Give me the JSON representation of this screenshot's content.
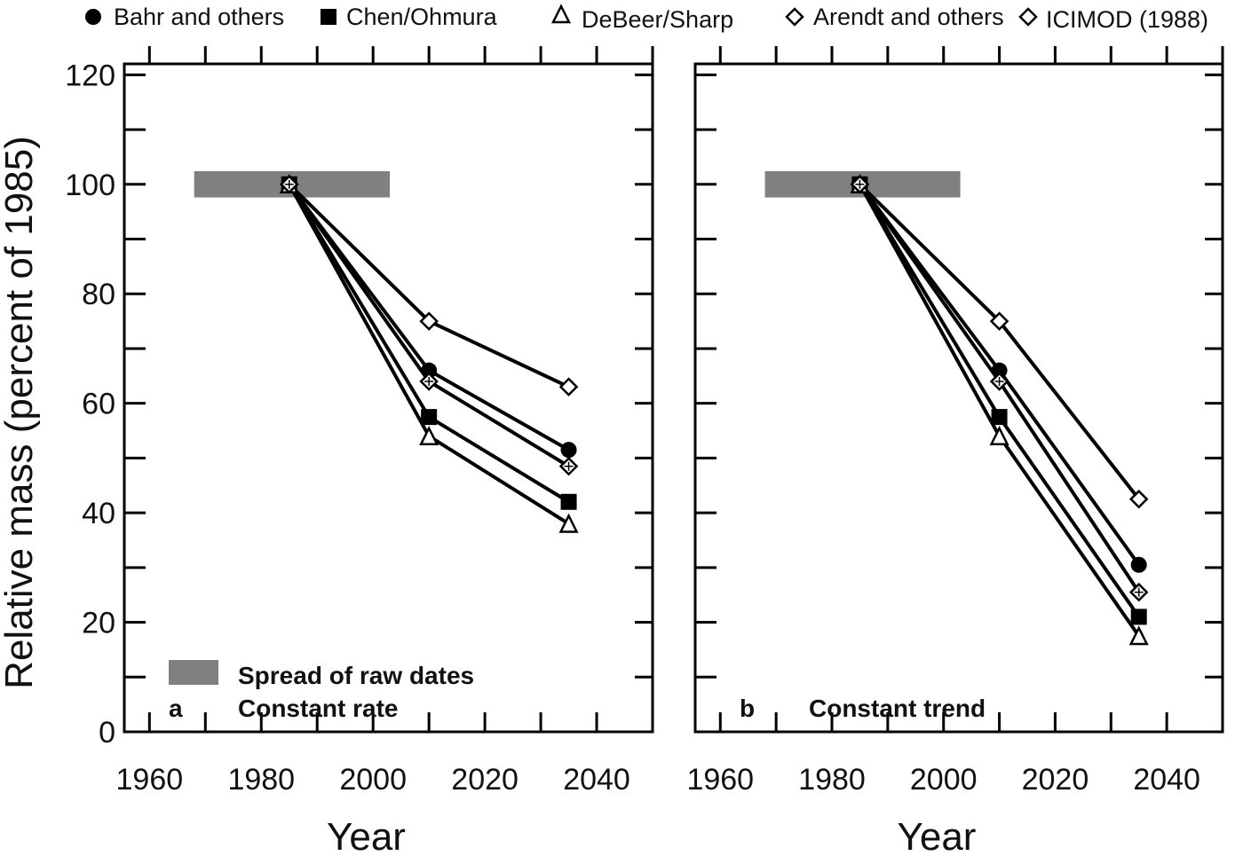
{
  "chart_data": [
    {
      "type": "line",
      "panel_label": "a",
      "title": "Constant rate",
      "xlabel": "Year",
      "ylabel": "Relative mass (percent of 1985)",
      "xlim": [
        1955.5,
        2050
      ],
      "ylim": [
        0,
        122
      ],
      "xticks": [
        1960,
        1980,
        2000,
        2020,
        2040
      ],
      "yticks": [
        0,
        20,
        40,
        60,
        80,
        100,
        120
      ],
      "spread": {
        "label": "Spread of raw dates",
        "x": [
          1968,
          2003
        ],
        "y": [
          97.6,
          102.4
        ],
        "color": "#808080"
      },
      "series": [
        {
          "name": "Bahr and others",
          "marker": "circle-filled",
          "x": [
            1985,
            2010,
            2035
          ],
          "y": [
            100,
            66,
            51.5
          ]
        },
        {
          "name": "Chen/Ohmura",
          "marker": "square-filled",
          "x": [
            1985,
            2010,
            2035
          ],
          "y": [
            100,
            57.5,
            42
          ]
        },
        {
          "name": "DeBeer/Sharp",
          "marker": "triangle-open",
          "x": [
            1985,
            2010,
            2035
          ],
          "y": [
            100,
            54,
            38
          ]
        },
        {
          "name": "Arendt and others",
          "marker": "diamond-open",
          "x": [
            1985,
            2010,
            2035
          ],
          "y": [
            100,
            75,
            63
          ]
        },
        {
          "name": "ICIMOD (1988)",
          "marker": "diamond-open-cross",
          "x": [
            1985,
            2010,
            2035
          ],
          "y": [
            100,
            64,
            48.5
          ]
        }
      ]
    },
    {
      "type": "line",
      "panel_label": "b",
      "title": "Constant trend",
      "xlabel": "Year",
      "xlim": [
        1955.5,
        2050
      ],
      "ylim": [
        0,
        122
      ],
      "xticks": [
        1960,
        1980,
        2000,
        2020,
        2040
      ],
      "spread": {
        "x": [
          1968,
          2003
        ],
        "y": [
          97.6,
          102.4
        ],
        "color": "#808080"
      },
      "series": [
        {
          "name": "Bahr and others",
          "marker": "circle-filled",
          "x": [
            1985,
            2010,
            2035
          ],
          "y": [
            100,
            66,
            30.5
          ]
        },
        {
          "name": "Chen/Ohmura",
          "marker": "square-filled",
          "x": [
            1985,
            2010,
            2035
          ],
          "y": [
            100,
            57.5,
            21
          ]
        },
        {
          "name": "DeBeer/Sharp",
          "marker": "triangle-open",
          "x": [
            1985,
            2010,
            2035
          ],
          "y": [
            100,
            54,
            17.5
          ]
        },
        {
          "name": "Arendt and others",
          "marker": "diamond-open",
          "x": [
            1985,
            2010,
            2035
          ],
          "y": [
            100,
            75,
            42.5
          ]
        },
        {
          "name": "ICIMOD (1988)",
          "marker": "diamond-open-cross",
          "x": [
            1985,
            2010,
            2035
          ],
          "y": [
            100,
            64,
            25.5
          ]
        }
      ]
    }
  ],
  "legend": {
    "placement": "top",
    "entries": [
      "Bahr and others",
      "Chen/Ohmura",
      "DeBeer/Sharp",
      "Arendt and others",
      "ICIMOD (1988)"
    ]
  }
}
